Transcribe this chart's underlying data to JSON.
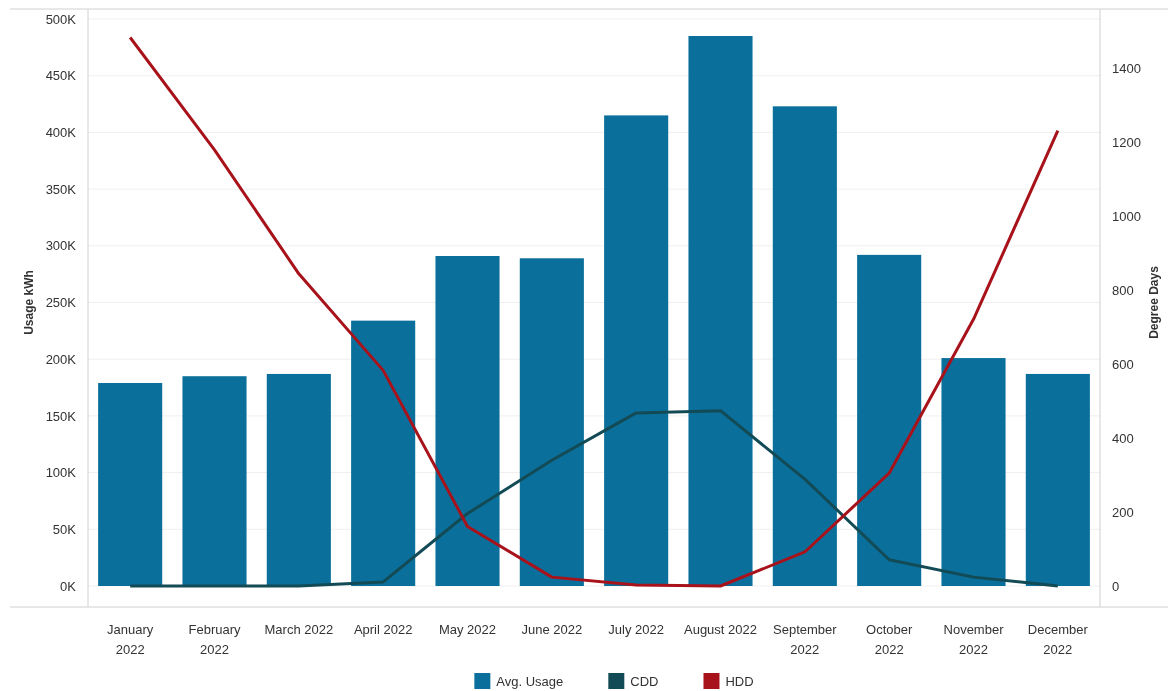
{
  "chart_data": {
    "type": "bar",
    "ylabel": "Usage kWh",
    "y2label": "Degree Days",
    "categories": [
      "January 2022",
      "February 2022",
      "March 2022",
      "April 2022",
      "May 2022",
      "June 2022",
      "July 2022",
      "August 2022",
      "September 2022",
      "October 2022",
      "November 2022",
      "December 2022"
    ],
    "series": [
      {
        "name": "Avg. Usage",
        "color": "#0b6f9b",
        "values": [
          179000,
          185000,
          187000,
          234000,
          291000,
          289000,
          415000,
          485000,
          423000,
          292000,
          201000,
          187000
        ]
      },
      {
        "name": "CDD",
        "type": "line",
        "axis": "y2",
        "color": "#124b55",
        "values": [
          0,
          0,
          0,
          11,
          196,
          340,
          468,
          474,
          289,
          71,
          24,
          0
        ]
      },
      {
        "name": "HDD",
        "type": "line",
        "axis": "y2",
        "color": "#a8121a",
        "values": [
          1483,
          1179,
          844,
          583,
          161,
          24,
          3,
          0,
          92,
          305,
          721,
          1231
        ]
      }
    ],
    "ylim": [
      0,
      500000
    ],
    "yticks": [
      {
        "value": 0,
        "label": "0K"
      },
      {
        "value": 50000,
        "label": "50K"
      },
      {
        "value": 100000,
        "label": "100K"
      },
      {
        "value": 150000,
        "label": "150K"
      },
      {
        "value": 200000,
        "label": "200K"
      },
      {
        "value": 250000,
        "label": "250K"
      },
      {
        "value": 300000,
        "label": "300K"
      },
      {
        "value": 350000,
        "label": "350K"
      },
      {
        "value": 400000,
        "label": "400K"
      },
      {
        "value": 450000,
        "label": "450K"
      },
      {
        "value": 500000,
        "label": "500K"
      }
    ],
    "y2lim": [
      0,
      1533
    ],
    "y2ticks": [
      0,
      200,
      400,
      600,
      800,
      1000,
      1200,
      1400
    ],
    "grid": "y",
    "legend": "bottom",
    "marker": "none",
    "line_style": "solid"
  }
}
